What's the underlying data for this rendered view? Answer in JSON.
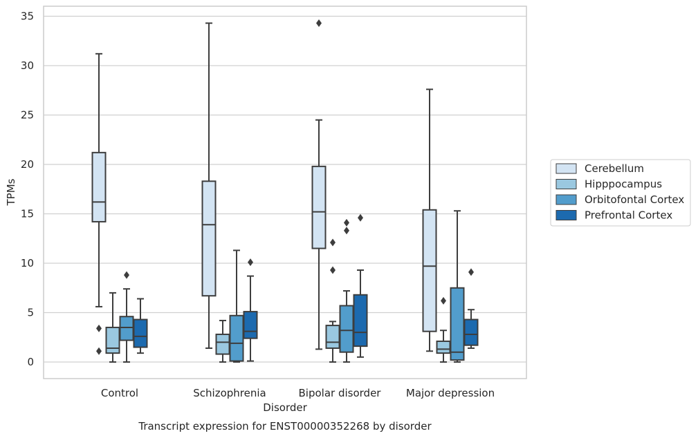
{
  "chart_data": {
    "type": "box",
    "caption": "Transcript expression for ENST00000352268 by disorder",
    "xlabel": "Disorder",
    "ylabel": "TPMs",
    "ylim": [
      -1.6,
      36
    ],
    "yticks": [
      0,
      5,
      10,
      15,
      20,
      25,
      30,
      35
    ],
    "grid": "horizontal",
    "legend_position": "right",
    "categories": [
      "Control",
      "Schizophrenia",
      "Bipolar disorder",
      "Major depression"
    ],
    "series": [
      {
        "name": "Cerebellum",
        "color": "#d3e4f3",
        "boxes": [
          {
            "whisker_low": 5.6,
            "q1": 14.2,
            "median": 16.2,
            "q3": 21.2,
            "whisker_high": 31.2,
            "outliers": []
          },
          {
            "whisker_low": 1.4,
            "q1": 6.7,
            "median": 13.9,
            "q3": 18.3,
            "whisker_high": 34.3,
            "outliers": []
          },
          {
            "whisker_low": 1.3,
            "q1": 11.5,
            "median": 15.2,
            "q3": 19.8,
            "whisker_high": 24.5,
            "outliers": [
              34.3
            ]
          },
          {
            "whisker_low": 1.1,
            "q1": 3.1,
            "median": 9.7,
            "q3": 15.4,
            "whisker_high": 27.6,
            "outliers": []
          }
        ]
      },
      {
        "name": "Hipppocampus",
        "color": "#9ac8e0",
        "boxes": [
          {
            "whisker_low": 0.0,
            "q1": 0.9,
            "median": 1.4,
            "q3": 3.5,
            "whisker_high": 7.0,
            "outliers": []
          },
          {
            "whisker_low": 0.0,
            "q1": 0.8,
            "median": 2.0,
            "q3": 2.8,
            "whisker_high": 4.2,
            "outliers": []
          },
          {
            "whisker_low": 0.0,
            "q1": 1.4,
            "median": 2.0,
            "q3": 3.7,
            "whisker_high": 4.1,
            "outliers": [
              9.3,
              12.1
            ]
          },
          {
            "whisker_low": 0.0,
            "q1": 0.9,
            "median": 1.3,
            "q3": 2.1,
            "whisker_high": 3.2,
            "outliers": [
              6.2
            ]
          }
        ]
      },
      {
        "name": "Orbitofontal Cortex",
        "color": "#529dcc",
        "boxes": [
          {
            "whisker_low": 0.0,
            "q1": 2.2,
            "median": 3.5,
            "q3": 4.6,
            "whisker_high": 7.4,
            "outliers": [
              8.8
            ]
          },
          {
            "whisker_low": 0.0,
            "q1": 0.1,
            "median": 1.9,
            "q3": 4.7,
            "whisker_high": 11.3,
            "outliers": []
          },
          {
            "whisker_low": 0.0,
            "q1": 1.0,
            "median": 3.2,
            "q3": 5.7,
            "whisker_high": 7.2,
            "outliers": [
              13.3,
              14.1
            ]
          },
          {
            "whisker_low": 0.0,
            "q1": 0.2,
            "median": 1.0,
            "q3": 7.5,
            "whisker_high": 15.3,
            "outliers": []
          }
        ]
      },
      {
        "name": "Prefrontal Cortex",
        "color": "#1c6aaf",
        "boxes": [
          {
            "whisker_low": 0.9,
            "q1": 1.5,
            "median": 2.6,
            "q3": 4.3,
            "whisker_high": 6.4,
            "outliers": []
          },
          {
            "whisker_low": 0.1,
            "q1": 2.4,
            "median": 3.1,
            "q3": 5.1,
            "whisker_high": 8.7,
            "outliers": [
              10.1
            ]
          },
          {
            "whisker_low": 0.5,
            "q1": 1.6,
            "median": 3.0,
            "q3": 6.8,
            "whisker_high": 9.3,
            "outliers": [
              14.6
            ]
          },
          {
            "whisker_low": 1.4,
            "q1": 1.7,
            "median": 2.8,
            "q3": 4.3,
            "whisker_high": 5.3,
            "outliers": [
              9.1
            ]
          }
        ]
      }
    ],
    "extra_outliers": [
      {
        "category": 0,
        "group": "left-of-hipppocampus",
        "values": [
          1.1,
          3.4
        ]
      }
    ]
  }
}
